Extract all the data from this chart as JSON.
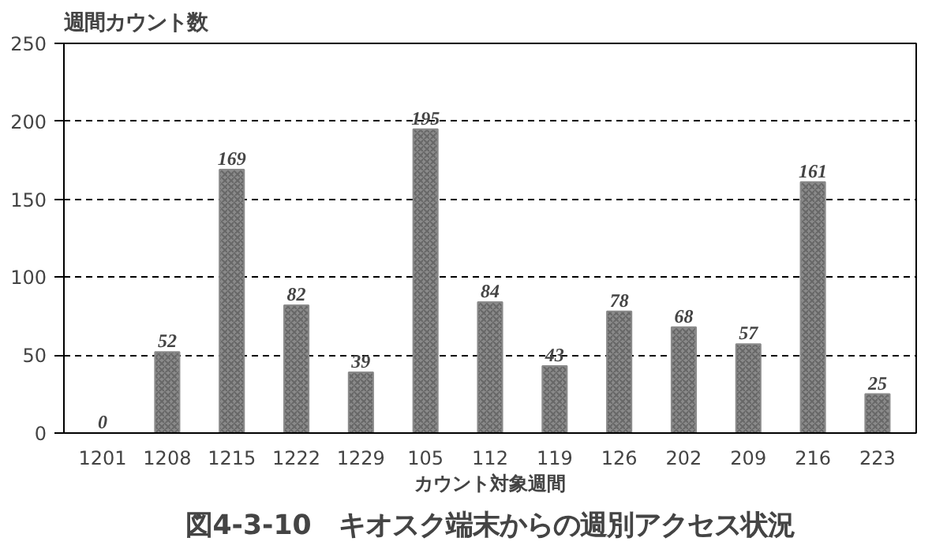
{
  "chart_data": {
    "type": "bar",
    "title": "図4-3-10　キオスク端末からの週別アクセス状況",
    "xlabel": "カウント対象週間",
    "ylabel": "週間カウント数",
    "categories": [
      "1201",
      "1208",
      "1215",
      "1222",
      "1229",
      "105",
      "112",
      "119",
      "126",
      "202",
      "209",
      "216",
      "223"
    ],
    "values": [
      0,
      52,
      169,
      82,
      39,
      195,
      84,
      43,
      78,
      68,
      57,
      161,
      25
    ],
    "color": "#8a8a8a",
    "ylim": [
      0,
      250
    ],
    "yticks": [
      0,
      50,
      100,
      150,
      200,
      250
    ],
    "grid": "y",
    "data_labels": true
  }
}
